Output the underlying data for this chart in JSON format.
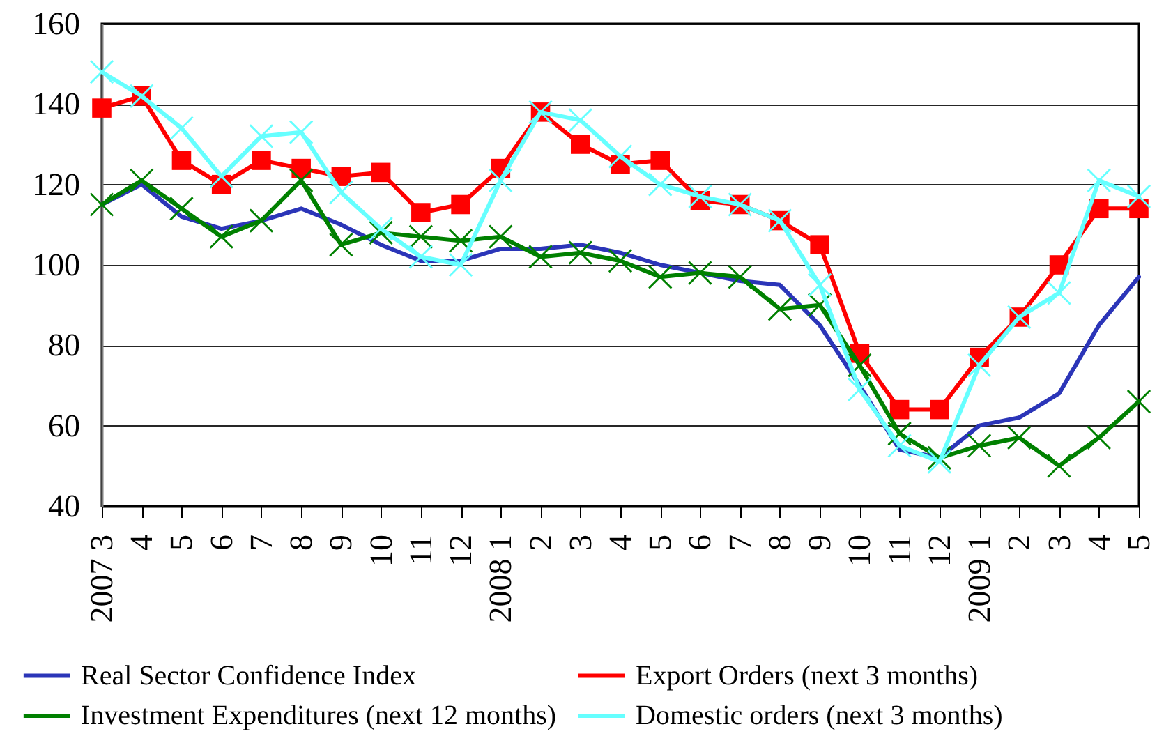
{
  "chart_data": {
    "type": "line",
    "categories": [
      "2007 3",
      "4",
      "5",
      "6",
      "7",
      "8",
      "9",
      "10",
      "11",
      "12",
      "2008 1",
      "2",
      "3",
      "4",
      "5",
      "6",
      "7",
      "8",
      "9",
      "10",
      "11",
      "12",
      "2009 1",
      "2",
      "3",
      "4",
      "5"
    ],
    "series": [
      {
        "name": "Real Sector Confidence Index",
        "color": "#2b35b8",
        "marker": "none",
        "values": [
          115,
          120,
          112,
          109,
          111,
          114,
          110,
          105,
          101,
          101,
          104,
          104,
          105,
          103,
          100,
          98,
          96,
          95,
          85,
          70,
          54,
          52,
          60,
          62,
          68,
          85,
          97
        ]
      },
      {
        "name": "Export Orders (next 3 months)",
        "color": "#ff0000",
        "marker": "square",
        "values": [
          139,
          142,
          126,
          120,
          126,
          124,
          122,
          123,
          113,
          115,
          124,
          138,
          130,
          125,
          126,
          116,
          115,
          111,
          105,
          78,
          64,
          64,
          77,
          87,
          100,
          114,
          114
        ]
      },
      {
        "name": "Investment Expenditures (next 12 months)",
        "color": "#008000",
        "marker": "cross",
        "values": [
          115,
          121,
          114,
          107,
          111,
          121,
          105,
          108,
          107,
          106,
          107,
          102,
          103,
          101,
          97,
          98,
          97,
          89,
          90,
          75,
          58,
          52,
          55,
          57,
          50,
          57,
          66
        ]
      },
      {
        "name": "Domestic orders (next 3 months)",
        "color": "#66ffff",
        "marker": "cross",
        "values": [
          148,
          142,
          134,
          122,
          132,
          133,
          118,
          109,
          102,
          100,
          121,
          138,
          136,
          127,
          120,
          117,
          115,
          111,
          95,
          69,
          55,
          51,
          75,
          87,
          93,
          121,
          117
        ]
      }
    ],
    "ylim": [
      40,
      160
    ],
    "yticks": [
      40,
      60,
      80,
      100,
      120,
      140,
      160
    ],
    "grid": "y",
    "legend": "bottom"
  }
}
